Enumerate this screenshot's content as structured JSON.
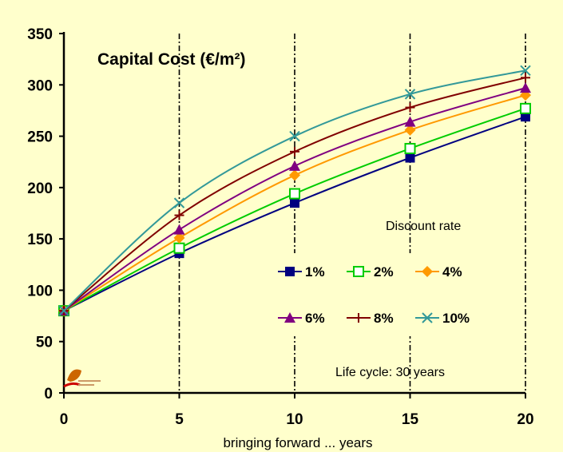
{
  "chart_data": {
    "type": "line",
    "title": "Capital Cost (€/m²)",
    "xlabel": "bringing forward  ...  years",
    "ylabel": "",
    "x": [
      0,
      5,
      10,
      15,
      20
    ],
    "xlim": [
      0,
      20
    ],
    "ylim": [
      0,
      350
    ],
    "xticks": [
      "0",
      "5",
      "10",
      "15",
      "20"
    ],
    "yticks": [
      "0",
      "50",
      "100",
      "150",
      "200",
      "250",
      "300",
      "350"
    ],
    "legend_title": "Discount rate",
    "annotation": "Life cycle: 30 years",
    "grid": "vertical dash-dot lines at x = 5, 10, 15, 20",
    "series": [
      {
        "name": "1%",
        "values": [
          80,
          136,
          185,
          229,
          269
        ],
        "color": "#000080",
        "marker": "filled-square"
      },
      {
        "name": "2%",
        "values": [
          80,
          141,
          194,
          238,
          277
        ],
        "color": "#00cc00",
        "marker": "hollow-square"
      },
      {
        "name": "4%",
        "values": [
          80,
          151,
          212,
          256,
          290
        ],
        "color": "#ff9900",
        "marker": "diamond"
      },
      {
        "name": "6%",
        "values": [
          80,
          159,
          221,
          264,
          297
        ],
        "color": "#800080",
        "marker": "triangle"
      },
      {
        "name": "8%",
        "values": [
          80,
          173,
          235,
          278,
          307
        ],
        "color": "#800000",
        "marker": "plus"
      },
      {
        "name": "10%",
        "values": [
          80,
          185,
          250,
          291,
          314
        ],
        "color": "#339999",
        "marker": "cross"
      }
    ]
  }
}
